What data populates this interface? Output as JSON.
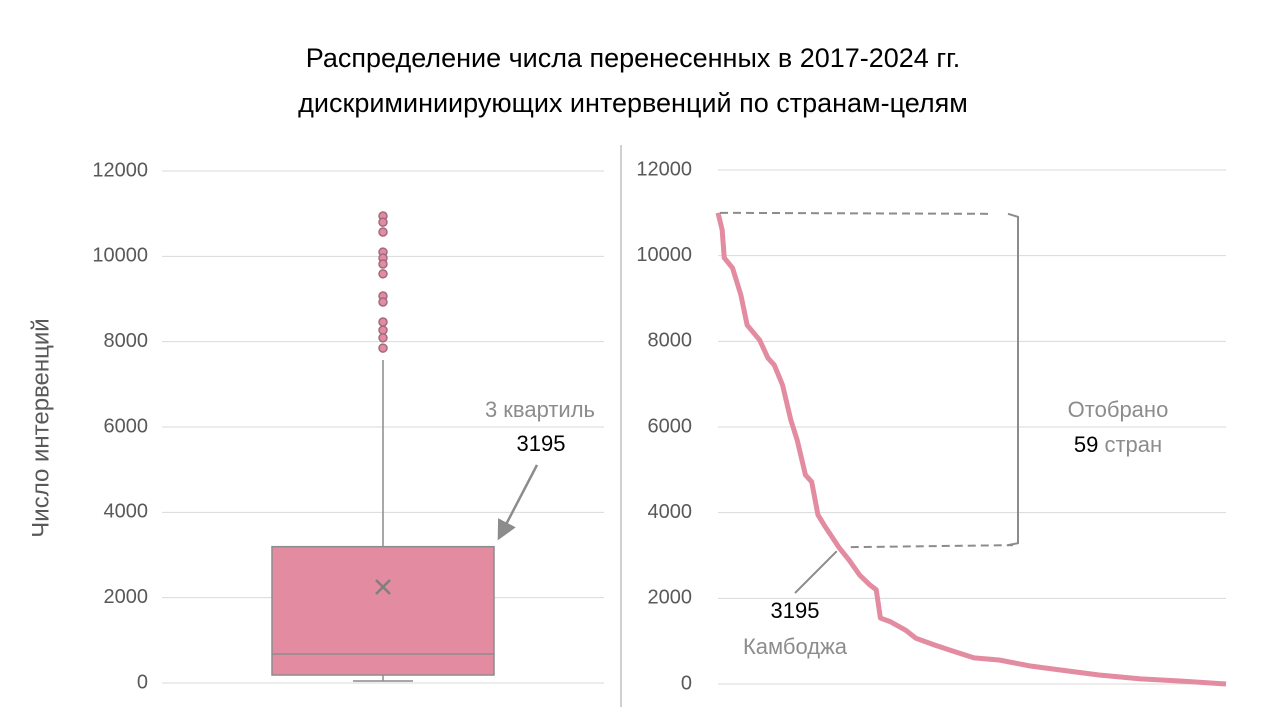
{
  "chart_data": [
    {
      "type": "box",
      "title": [
        "Распределение числа перенесенных в 2017-2024 гг.",
        "дискриминиирующих интервенций по странам-целям"
      ],
      "y_label": "Число интервенций",
      "min": 47,
      "q1": 187,
      "median": 680,
      "q3": 3195,
      "max": 7570,
      "mean": 2250,
      "outliers": [
        10945,
        10800,
        10570,
        10100,
        9960,
        9820,
        9590,
        9070,
        8930,
        8460,
        8270,
        8090,
        7850
      ],
      "color": "#e38ba0",
      "ylim": [
        0,
        12000
      ],
      "yticks": [
        0,
        2000,
        4000,
        6000,
        8000,
        10000,
        12000
      ],
      "grid": true,
      "annotation": "3 квартиль"
    },
    {
      "type": "line",
      "x": [
        1,
        3,
        4,
        8,
        12,
        15,
        21,
        25,
        28,
        32,
        36,
        39,
        43,
        46,
        49,
        52,
        59,
        64,
        69,
        74,
        77,
        79,
        84,
        91,
        96,
        105,
        115,
        124,
        136,
        151,
        165,
        184,
        204,
        223,
        245
      ],
      "series": [
        {
          "color": "#e38ba0",
          "values": [
            11000,
            10600,
            9950,
            9710,
            9080,
            8380,
            8030,
            7610,
            7450,
            6980,
            6160,
            5700,
            4880,
            4720,
            3950,
            3710,
            3195,
            2890,
            2545,
            2310,
            2200,
            1540,
            1450,
            1260,
            1070,
            910,
            750,
            610,
            560,
            420,
            330,
            210,
            120,
            70,
            0
          ]
        }
      ],
      "xlim": [
        1,
        245
      ],
      "ylim": [
        0,
        12000
      ],
      "yticks": [
        0,
        2000,
        4000,
        6000,
        8000,
        10000,
        12000
      ],
      "grid": true,
      "selected": 59,
      "annotation": [
        "Отобрано",
        "стран"
      ],
      "highlight_label": "Камбоджа"
    }
  ]
}
